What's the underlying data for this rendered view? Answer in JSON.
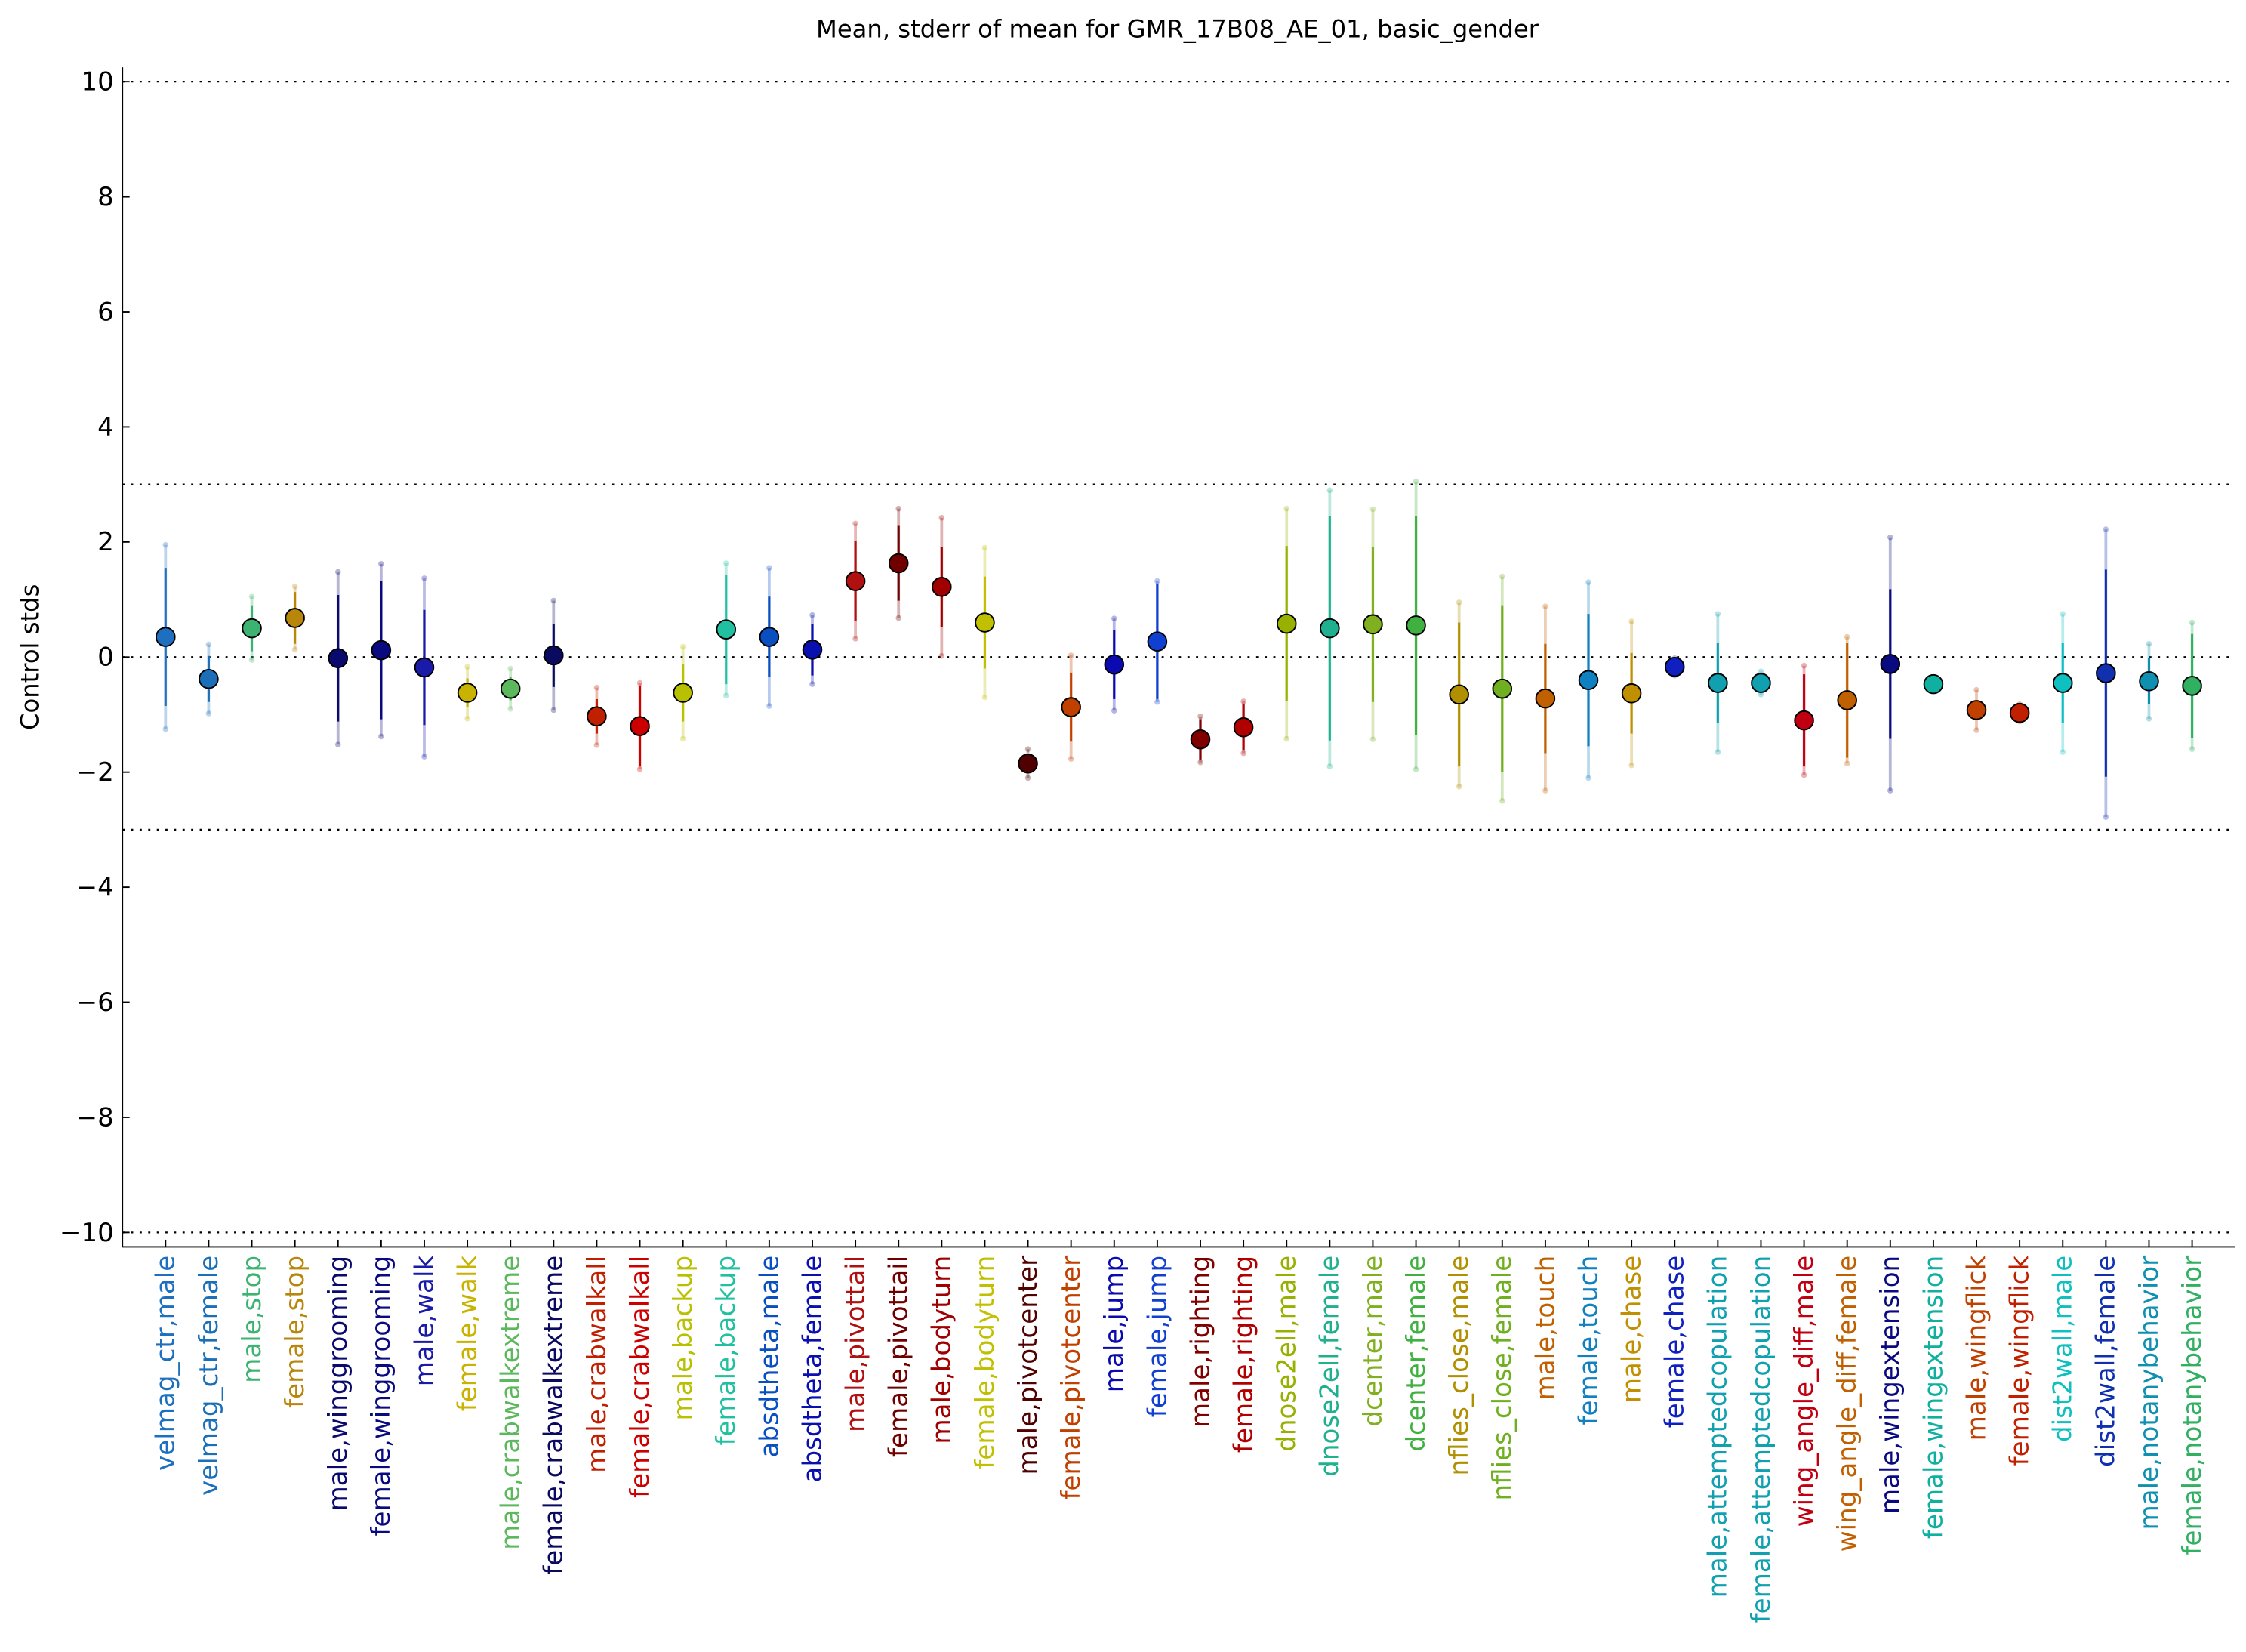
{
  "chart_data": {
    "type": "errorbar",
    "title": "Mean, stderr of mean for GMR_17B08_AE_01, basic_gender",
    "y_label": "Control stds",
    "categories": [
      "velmag_ctr,male",
      "velmag_ctr,female",
      "male,stop",
      "female,stop",
      "male,winggrooming",
      "female,winggrooming",
      "male,walk",
      "female,walk",
      "male,crabwalkextreme",
      "female,crabwalkextreme",
      "male,crabwalkall",
      "female,crabwalkall",
      "male,backup",
      "female,backup",
      "absdtheta,male",
      "absdtheta,female",
      "male,pivottail",
      "female,pivottail",
      "male,bodyturn",
      "female,bodyturn",
      "male,pivotcenter",
      "female,pivotcenter",
      "male,jump",
      "female,jump",
      "male,righting",
      "female,righting",
      "dnose2ell,male",
      "dnose2ell,female",
      "dcenter,male",
      "dcenter,female",
      "nflies_close,male",
      "nflies_close,female",
      "male,touch",
      "female,touch",
      "male,chase",
      "female,chase",
      "male,attemptedcopulation",
      "female,attemptedcopulation",
      "wing_angle_diff,male",
      "wing_angle_diff,female",
      "male,wingextension",
      "female,wingextension",
      "male,wingflick",
      "female,wingflick",
      "dist2wall,male",
      "dist2wall,female",
      "male,notanybehavior",
      "female,notanybehavior"
    ],
    "values": [
      0.35,
      -0.38,
      0.5,
      0.68,
      -0.02,
      0.12,
      -0.18,
      -0.62,
      -0.55,
      0.03,
      -1.03,
      -1.2,
      -0.62,
      0.48,
      0.35,
      0.13,
      1.32,
      1.63,
      1.22,
      0.6,
      -1.85,
      -0.87,
      -0.13,
      0.27,
      -1.43,
      -1.22,
      0.58,
      0.5,
      0.57,
      0.55,
      -0.65,
      -0.55,
      -0.72,
      -0.4,
      -0.63,
      -0.17,
      -0.45,
      -0.45,
      -1.1,
      -0.75,
      -0.12,
      -0.47,
      -0.92,
      -0.97,
      -0.45,
      -0.28,
      -0.42,
      -0.5
    ],
    "errors": [
      1.2,
      0.4,
      0.4,
      0.45,
      1.1,
      1.2,
      1.0,
      0.25,
      0.2,
      0.55,
      0.3,
      0.7,
      0.5,
      0.95,
      0.7,
      0.45,
      0.7,
      0.65,
      0.7,
      0.8,
      0.15,
      0.6,
      0.6,
      1.0,
      0.35,
      0.4,
      1.35,
      1.95,
      1.35,
      1.9,
      1.25,
      1.45,
      0.95,
      1.15,
      0.7,
      0.1,
      0.7,
      0.1,
      0.8,
      1.0,
      1.3,
      0.05,
      0.15,
      0.1,
      0.7,
      1.8,
      0.4,
      0.9
    ],
    "outer_errors": [
      1.6,
      0.6,
      0.55,
      0.55,
      1.5,
      1.5,
      1.55,
      0.45,
      0.35,
      0.95,
      0.5,
      0.75,
      0.8,
      1.15,
      1.2,
      0.6,
      1.0,
      0.95,
      1.2,
      1.3,
      0.25,
      0.9,
      0.8,
      1.05,
      0.4,
      0.45,
      2.0,
      2.4,
      2.0,
      2.5,
      1.6,
      1.95,
      1.6,
      1.7,
      1.25,
      0.15,
      1.2,
      0.2,
      0.95,
      1.1,
      2.2,
      0.1,
      0.35,
      0.15,
      1.2,
      2.5,
      0.65,
      1.1
    ],
    "colors": [
      "#1f6fc0",
      "#1a6fb8",
      "#3cb371",
      "#b8860b",
      "#0a0a6e",
      "#0a0a80",
      "#1a1aa8",
      "#c8b400",
      "#5cb85c",
      "#0a0a60",
      "#c02000",
      "#cc0000",
      "#b8c000",
      "#20c0a0",
      "#0a4fc0",
      "#0a10b0",
      "#b01010",
      "#700000",
      "#a00000",
      "#c0c000",
      "#500000",
      "#c04000",
      "#0a0ab0",
      "#1040d0",
      "#800000",
      "#b00000",
      "#98b000",
      "#20b090",
      "#80b020",
      "#40b040",
      "#b09000",
      "#70b020",
      "#c06000",
      "#1080c0",
      "#c09000",
      "#1020c0",
      "#10a0b0",
      "#10a0b0",
      "#c00010",
      "#c06000",
      "#0a0a80",
      "#10b0a0",
      "#c04000",
      "#c02000",
      "#10c0c0",
      "#1030b0",
      "#1090b0",
      "#30b060"
    ],
    "ylim": [
      -10.25,
      10.25
    ],
    "yticks": [
      {
        "value": -10,
        "label": "−10"
      },
      {
        "value": -8,
        "label": "−8"
      },
      {
        "value": -6,
        "label": "−6"
      },
      {
        "value": -4,
        "label": "−4"
      },
      {
        "value": -2,
        "label": "−2"
      },
      0,
      2,
      4,
      6,
      8,
      10
    ],
    "hlines": [
      10,
      3,
      0,
      -3,
      -10
    ]
  }
}
